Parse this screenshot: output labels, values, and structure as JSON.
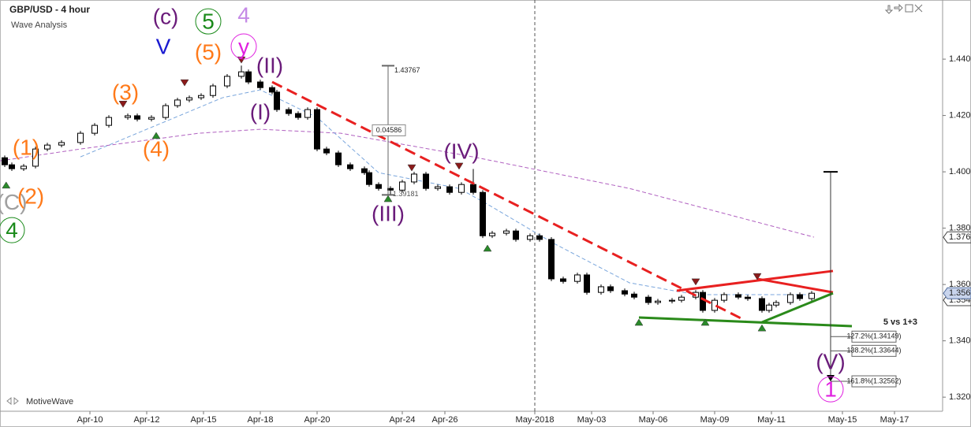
{
  "chart_data": {
    "type": "candlestick",
    "title": "GBP/USD - 4 hour",
    "subtitle": "Wave Analysis",
    "brand": "MotiveWave",
    "xlim": [
      0,
      199
    ],
    "ylim": [
      1.315,
      1.461
    ],
    "xticks": [
      {
        "value": 19,
        "label": "Apr-10"
      },
      {
        "value": 31,
        "label": "Apr-12"
      },
      {
        "value": 43,
        "label": "Apr-15"
      },
      {
        "value": 55,
        "label": "Apr-18"
      },
      {
        "value": 67,
        "label": "Apr-20"
      },
      {
        "value": 85,
        "label": "Apr-24"
      },
      {
        "value": 94,
        "label": "Apr-26"
      },
      {
        "value": 113,
        "label": "May-2018"
      },
      {
        "value": 125,
        "label": "May-03"
      },
      {
        "value": 138,
        "label": "May-06"
      },
      {
        "value": 151,
        "label": "May-09"
      },
      {
        "value": 163,
        "label": "May-11"
      },
      {
        "value": 178,
        "label": "May-15"
      },
      {
        "value": 189,
        "label": "May-17"
      }
    ],
    "yticks": [
      {
        "value": 1.32,
        "label": "1.32000"
      },
      {
        "value": 1.34,
        "label": "1.34000"
      },
      {
        "value": 1.36,
        "label": "1.36000"
      },
      {
        "value": 1.38,
        "label": "1.38000"
      },
      {
        "value": 1.4,
        "label": "1.40000"
      },
      {
        "value": 1.42,
        "label": "1.42000"
      },
      {
        "value": 1.44,
        "label": "1.44000"
      }
    ],
    "up_color": "#ffffff",
    "down_color": "#000000",
    "x": [
      1,
      2.5,
      5,
      7.5,
      10,
      13,
      17,
      20,
      23,
      27,
      29,
      32,
      35,
      37.5,
      40,
      42.5,
      45,
      48,
      51,
      52.5,
      55,
      57.5,
      58.5,
      61,
      63,
      65,
      67,
      69,
      71.5,
      74,
      77,
      78,
      80,
      82.5,
      85,
      87.5,
      90,
      92.5,
      95,
      97.5,
      100,
      102,
      104,
      107,
      109,
      112,
      114,
      116.5,
      119,
      122,
      124,
      127,
      129,
      132,
      134,
      137,
      139,
      142,
      144,
      147,
      148.5,
      151,
      153,
      156,
      158,
      161,
      162.5,
      164,
      167,
      169,
      171.5
    ],
    "open": [
      1.405,
      1.4025,
      1.4011,
      1.402,
      1.4081,
      1.4095,
      1.4104,
      1.4137,
      1.4165,
      1.4193,
      1.4199,
      1.4187,
      1.4193,
      1.4235,
      1.4255,
      1.4263,
      1.4271,
      1.4305,
      1.4339,
      1.4355,
      1.4319,
      1.4299,
      1.4283,
      1.4221,
      1.4207,
      1.4193,
      1.4221,
      1.4081,
      1.4067,
      1.4025,
      1.4011,
      1.3997,
      1.3955,
      1.3941,
      1.3935,
      1.3964,
      1.3992,
      1.3941,
      1.3947,
      1.3927,
      1.3955,
      1.3927,
      1.3773,
      1.3782,
      1.379,
      1.376,
      1.3773,
      1.376,
      1.362,
      1.3611,
      1.3634,
      1.3572,
      1.3592,
      1.3578,
      1.3566,
      1.3555,
      1.3536,
      1.3541,
      1.3544,
      1.3555,
      1.3572,
      1.3508,
      1.3544,
      1.3564,
      1.3555,
      1.355,
      1.3508,
      1.3527,
      1.3536,
      1.3564,
      1.355
    ],
    "high": [
      1.4058,
      1.4033,
      1.4028,
      1.4089,
      1.4103,
      1.4112,
      1.4145,
      1.4173,
      1.4201,
      1.4207,
      1.4207,
      1.4201,
      1.4243,
      1.4263,
      1.4271,
      1.4279,
      1.4313,
      1.4347,
      1.4377,
      1.4363,
      1.4327,
      1.4307,
      1.4291,
      1.4229,
      1.4215,
      1.4229,
      1.4229,
      1.4089,
      1.4075,
      1.4033,
      1.4019,
      1.4005,
      1.3963,
      1.3949,
      1.3972,
      1.4,
      1.4,
      1.3955,
      1.3955,
      1.3963,
      1.401,
      1.3935,
      1.379,
      1.3798,
      1.3798,
      1.3781,
      1.3781,
      1.3768,
      1.3628,
      1.3642,
      1.3642,
      1.36,
      1.36,
      1.3586,
      1.3574,
      1.3563,
      1.3549,
      1.3552,
      1.3563,
      1.358,
      1.358,
      1.3552,
      1.3572,
      1.3572,
      1.3563,
      1.3558,
      1.3535,
      1.3544,
      1.3572,
      1.3572,
      1.3577
    ],
    "low": [
      1.4017,
      1.4003,
      1.4003,
      1.4012,
      1.4073,
      1.4087,
      1.4096,
      1.4129,
      1.4157,
      1.4185,
      1.4179,
      1.4179,
      1.4185,
      1.4227,
      1.4247,
      1.4255,
      1.4263,
      1.4297,
      1.4331,
      1.4311,
      1.4291,
      1.4275,
      1.4213,
      1.4199,
      1.4185,
      1.4185,
      1.4073,
      1.4059,
      1.4017,
      1.4003,
      1.3989,
      1.3947,
      1.3933,
      1.3918,
      1.3927,
      1.3956,
      1.3933,
      1.3933,
      1.3919,
      1.3919,
      1.3919,
      1.3765,
      1.3765,
      1.3774,
      1.3752,
      1.3752,
      1.3752,
      1.3612,
      1.3603,
      1.3603,
      1.3564,
      1.3564,
      1.357,
      1.3558,
      1.3547,
      1.3528,
      1.3528,
      1.3533,
      1.3536,
      1.3547,
      1.35,
      1.35,
      1.3536,
      1.3547,
      1.3542,
      1.35,
      1.35,
      1.3519,
      1.3528,
      1.3542,
      1.3542
    ],
    "close": [
      1.4025,
      1.4011,
      1.402,
      1.4081,
      1.4095,
      1.4104,
      1.4137,
      1.4165,
      1.4193,
      1.4199,
      1.4187,
      1.4193,
      1.4235,
      1.4255,
      1.4263,
      1.4271,
      1.4305,
      1.4339,
      1.4355,
      1.4319,
      1.4299,
      1.4283,
      1.4221,
      1.4207,
      1.4193,
      1.4221,
      1.4081,
      1.4067,
      1.4025,
      1.4011,
      1.3997,
      1.3955,
      1.3941,
      1.3935,
      1.3964,
      1.3992,
      1.3941,
      1.3947,
      1.3927,
      1.3955,
      1.3927,
      1.3773,
      1.3782,
      1.379,
      1.376,
      1.3773,
      1.376,
      1.362,
      1.3611,
      1.3634,
      1.3572,
      1.3592,
      1.3578,
      1.3566,
      1.3555,
      1.3536,
      1.3541,
      1.3544,
      1.3555,
      1.3572,
      1.3508,
      1.3544,
      1.3564,
      1.3555,
      1.355,
      1.3508,
      1.3527,
      1.3536,
      1.3564,
      1.355,
      1.3569
    ],
    "moving_averages": [
      {
        "color": "#b060c0",
        "x": [
          0,
          17,
          42,
          55,
          72,
          100,
          133,
          172
        ],
        "values": [
          1.4039,
          1.4081,
          1.4137,
          1.4151,
          1.4137,
          1.4053,
          1.3941,
          1.3768
        ]
      },
      {
        "color": "#7aa6dc",
        "x": [
          17,
          33,
          47,
          55,
          67,
          80,
          97,
          103,
          117,
          133,
          147,
          172
        ],
        "values": [
          1.4053,
          1.4165,
          1.4263,
          1.4291,
          1.4193,
          1.3997,
          1.3941,
          1.3885,
          1.3746,
          1.3606,
          1.3564,
          1.3564
        ]
      }
    ],
    "trendlines": [
      {
        "color": "#e82020",
        "dashed": true,
        "x": [
          57.5,
          157.5
        ],
        "values": [
          1.4319,
          1.3472
        ]
      },
      {
        "color": "#e82020",
        "dashed": false,
        "x": [
          143,
          176
        ],
        "values": [
          1.3578,
          1.3648
        ]
      },
      {
        "color": "#e82020",
        "dashed": false,
        "x": [
          160,
          176
        ],
        "values": [
          1.362,
          1.3572
        ]
      },
      {
        "color": "#2a8a1a",
        "dashed": false,
        "x": [
          135,
          180
        ],
        "values": [
          1.3483,
          1.3452
        ]
      },
      {
        "color": "#2a8a1a",
        "dashed": false,
        "x": [
          161,
          176
        ],
        "values": [
          1.3466,
          1.3569
        ]
      }
    ],
    "separators": [
      113
    ],
    "markers": [
      {
        "dir": "up",
        "x": 1.3,
        "price": 1.3953
      },
      {
        "dir": "up",
        "x": 33,
        "price": 1.4129
      },
      {
        "dir": "up",
        "x": 82,
        "price": 1.3905
      },
      {
        "dir": "up",
        "x": 103,
        "price": 1.3729
      },
      {
        "dir": "up",
        "x": 135,
        "price": 1.3466
      },
      {
        "dir": "up",
        "x": 149,
        "price": 1.3466
      },
      {
        "dir": "up",
        "x": 161,
        "price": 1.3446
      },
      {
        "dir": "down",
        "x": 26,
        "price": 1.424
      },
      {
        "dir": "down",
        "x": 39,
        "price": 1.4316
      },
      {
        "dir": "down",
        "x": 51,
        "price": 1.4397
      },
      {
        "dir": "down",
        "x": 87,
        "price": 1.4014
      },
      {
        "dir": "down",
        "x": 97,
        "price": 1.402
      },
      {
        "dir": "down",
        "x": 147,
        "price": 1.3609
      },
      {
        "dir": "down",
        "x": 160,
        "price": 1.3628
      }
    ],
    "measure": {
      "x": 82,
      "top": 1.43767,
      "bottom": 1.39181,
      "diff": 0.04586
    },
    "projection": {
      "x": 175.5,
      "top": 1.4,
      "bottom": 1.32562
    },
    "fib_title": "5 vs 1+3",
    "fib_levels": [
      {
        "label": "127.2%(1.34149)",
        "value": 1.34149
      },
      {
        "label": "138.2%(1.33644)",
        "value": 1.33644
      },
      {
        "label": "161.8%(1.32562)",
        "value": 1.32562
      }
    ],
    "price_labels": [
      1.37675,
      1.35443
    ],
    "last_price": 1.35687,
    "annotations": [
      {
        "text": "(c)",
        "x": 35,
        "price": 1.4551,
        "color": "#6a1b7a",
        "circled": false
      },
      {
        "text": "V",
        "x": 34.5,
        "price": 1.4445,
        "color": "#1a1ad0",
        "circled": false
      },
      {
        "text": "5",
        "x": 44,
        "price": 1.4534,
        "color": "#1a8a1a",
        "circled": true
      },
      {
        "text": "4",
        "x": 51.5,
        "price": 1.4557,
        "color": "#c58ae6",
        "circled": false
      },
      {
        "text": "y",
        "x": 51.5,
        "price": 1.4445,
        "color": "#e020e0",
        "circled": true
      },
      {
        "text": "(5)",
        "x": 44,
        "price": 1.4425,
        "color": "#ff7a1a",
        "circled": false
      },
      {
        "text": "(3)",
        "x": 26.5,
        "price": 1.4283,
        "color": "#ff7a1a",
        "circled": false
      },
      {
        "text": "(4)",
        "x": 33,
        "price": 1.4081,
        "color": "#ff7a1a",
        "circled": false
      },
      {
        "text": "(1)",
        "x": 5.5,
        "price": 1.4087,
        "color": "#ff7a1a",
        "circled": false
      },
      {
        "text": "(C)",
        "x": 2.5,
        "price": 1.3893,
        "color": "#a0a0a0",
        "circled": false
      },
      {
        "text": "(2)",
        "x": 6.5,
        "price": 1.3913,
        "color": "#ff7a1a",
        "circled": false
      },
      {
        "text": "4",
        "x": 2.5,
        "price": 1.3793,
        "color": "#1a8a1a",
        "circled": true
      },
      {
        "text": "(II)",
        "x": 57,
        "price": 1.4378,
        "color": "#6a1b7a",
        "circled": false
      },
      {
        "text": "(I)",
        "x": 55,
        "price": 1.4213,
        "color": "#6a1b7a",
        "circled": false
      },
      {
        "text": "(III)",
        "x": 82,
        "price": 1.3852,
        "color": "#6a1b7a",
        "circled": false
      },
      {
        "text": "(IV)",
        "x": 97.5,
        "price": 1.4073,
        "color": "#6a1b7a",
        "circled": false
      },
      {
        "text": "(V)",
        "x": 175.5,
        "price": 1.3326,
        "color": "#6a1b7a",
        "circled": false
      },
      {
        "text": "1",
        "x": 175.5,
        "price": 1.3228,
        "color": "#e020e0",
        "circled": true
      }
    ]
  }
}
